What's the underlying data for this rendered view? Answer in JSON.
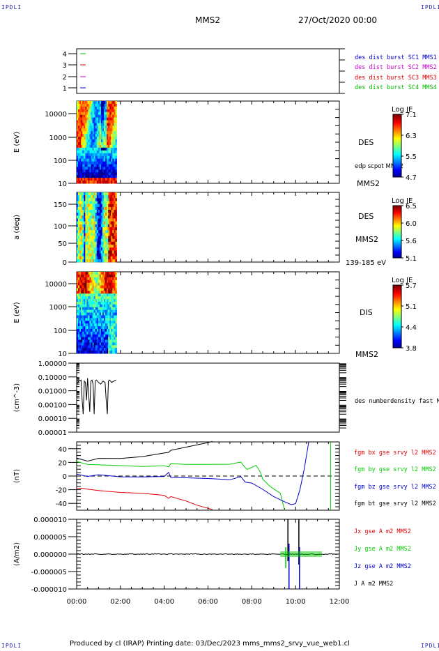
{
  "header": {
    "corner_label": "IPDLI",
    "spacecraft": "MMS2",
    "date": "27/Oct/2020 00:00"
  },
  "footer": {
    "text": "Produced by cl (IRAP)   Printing date: 03/Dec/2023   mms_mms2_srvy_vue_web1.cl"
  },
  "colors": {
    "mms1": "#0000cc",
    "mms2": "#cc00cc",
    "mms3": "#dd0000",
    "mms4": "#00bb00",
    "bx": "#dd0000",
    "by": "#00cc00",
    "bz": "#0000cc",
    "bt": "#000000"
  },
  "chart_data": [
    {
      "type": "line",
      "panel": "burst-availability",
      "yticks": [
        "4",
        "3",
        "2",
        "1"
      ],
      "series": [
        {
          "name": "des dist burst SC1 MMS1",
          "y": 1,
          "color": "#0000cc"
        },
        {
          "name": "des dist burst SC2 MMS2",
          "y": 2,
          "color": "#cc00cc"
        },
        {
          "name": "des dist burst SC3 MMS3",
          "y": 3,
          "color": "#dd0000"
        },
        {
          "name": "des dist burst SC4 MMS4",
          "y": 4,
          "color": "#00bb00"
        }
      ]
    },
    {
      "type": "heatmap",
      "panel": "des-energy",
      "ylabel": "E (eV)",
      "yticks": [
        "10000",
        "1000",
        "100",
        "10"
      ],
      "yscale": "log",
      "ylim": [
        10,
        30000
      ],
      "x_data_range": [
        "00:00",
        "01:50"
      ],
      "right_labels": [
        "DES",
        "edp scpot MMS2",
        "MMS2"
      ],
      "colorbar": {
        "title": "Log JE",
        "ticks": [
          "7.1",
          "6.3",
          "5.5",
          "4.7"
        ]
      }
    },
    {
      "type": "heatmap",
      "panel": "des-pitch-angle",
      "ylabel": "a (deg)",
      "yticks": [
        "150",
        "100",
        "50",
        "0"
      ],
      "ylim": [
        0,
        180
      ],
      "x_data_range": [
        "00:00",
        "01:50"
      ],
      "right_labels": [
        "DES",
        "MMS2",
        "139-185 eV"
      ],
      "colorbar": {
        "title": "Log JE",
        "ticks": [
          "6.5",
          "6.0",
          "5.6",
          "5.1"
        ]
      }
    },
    {
      "type": "heatmap",
      "panel": "dis-energy",
      "ylabel": "E (eV)",
      "yticks": [
        "10000",
        "1000",
        "100",
        "10"
      ],
      "yscale": "log",
      "ylim": [
        10,
        30000
      ],
      "x_data_range": [
        "00:00",
        "01:50"
      ],
      "right_labels": [
        "DIS",
        "MMS2"
      ],
      "colorbar": {
        "title": "Log JE",
        "ticks": [
          "5.7",
          "5.1",
          "4.4",
          "3.8"
        ]
      }
    },
    {
      "type": "line",
      "panel": "density",
      "ylabel": "(cm^-3)",
      "yticks": [
        "1.00000",
        "0.10000",
        "0.01000",
        "0.00100",
        "0.00010",
        "0.00001"
      ],
      "yscale": "log",
      "ylim": [
        1e-05,
        1
      ],
      "series": [
        {
          "name": "des numberdensity fast M",
          "color": "#000000",
          "x": [
            0.0,
            0.1,
            0.2,
            0.25,
            0.3,
            0.35,
            0.4,
            0.45,
            0.5,
            0.55,
            0.6,
            0.65,
            0.7,
            0.75,
            0.8,
            0.85,
            0.9,
            0.95,
            1.0,
            1.1,
            1.2,
            1.3,
            1.35,
            1.4,
            1.45,
            1.5,
            1.55,
            1.6,
            1.7,
            1.8
          ],
          "y": [
            0.03,
            0.05,
            0.06,
            0.002,
            0.0002,
            0.05,
            0.04,
            0.002,
            0.08,
            0.005,
            0.0003,
            0.05,
            0.06,
            0.03,
            0.0002,
            0.05,
            0.06,
            0.05,
            0.04,
            0.03,
            0.05,
            0.04,
            0.002,
            0.0002,
            0.05,
            0.06,
            0.05,
            0.04,
            0.05,
            0.06
          ]
        }
      ]
    },
    {
      "type": "line",
      "panel": "magnetic-field",
      "ylabel": "(nT)",
      "yticks": [
        "40",
        "20",
        "0",
        "-20",
        "-40"
      ],
      "ylim": [
        -50,
        50
      ],
      "series": [
        {
          "name": "fgm bx gse srvy l2 MMS2",
          "color": "#dd0000",
          "x": [
            0.0,
            0.2,
            0.5,
            1.0,
            2.0,
            3.0,
            4.0,
            4.2,
            4.3,
            5.0,
            5.5,
            6.0,
            6.2
          ],
          "y": [
            -18,
            -17,
            -20,
            -22,
            -24,
            -26,
            -29,
            -33,
            -30,
            -37,
            -42,
            -47,
            -50
          ]
        },
        {
          "name": "fgm by gse srvy l2 MMS2",
          "color": "#00cc00",
          "x": [
            0.0,
            0.5,
            1.0,
            2.0,
            3.0,
            4.0,
            4.2,
            4.3,
            5.0,
            6.0,
            7.0,
            7.5,
            7.7,
            7.8,
            8.2,
            8.4,
            8.5,
            8.8,
            9.0,
            9.3,
            9.5
          ],
          "y": [
            21,
            18,
            17,
            15,
            15,
            16,
            13,
            19,
            18,
            17,
            17,
            20,
            12,
            10,
            15,
            5,
            -5,
            -15,
            -20,
            -25,
            -50
          ]
        },
        {
          "name": "fgm bz gse srvy l2 MMS2",
          "color": "#0000cc",
          "x": [
            0.0,
            0.5,
            1.0,
            2.0,
            3.0,
            4.0,
            4.2,
            4.3,
            5.0,
            6.0,
            7.0,
            7.5,
            7.7,
            8.0,
            8.5,
            9.0,
            9.5,
            9.8,
            10.0,
            10.2,
            10.4,
            10.6
          ],
          "y": [
            3,
            0,
            1,
            -1,
            -1,
            0,
            5,
            -2,
            -3,
            -4,
            -5,
            0,
            -8,
            -10,
            -20,
            -30,
            -37,
            -42,
            -40,
            -20,
            10,
            50
          ]
        },
        {
          "name": "fgm bt gse srvy l2 MMS2",
          "color": "#000000",
          "x": [
            0.0,
            0.5,
            1.0,
            2.0,
            3.0,
            4.0,
            4.2,
            4.3,
            5.0,
            6.0,
            6.2
          ],
          "y": [
            26,
            22,
            25,
            26,
            28,
            33,
            35,
            38,
            42,
            48,
            50
          ]
        },
        {
          "name": "spike",
          "color": "#00cc00",
          "x": [
            11.6,
            11.6,
            11.6
          ],
          "y": [
            -50,
            50,
            -50
          ]
        }
      ]
    },
    {
      "type": "line",
      "panel": "current-density",
      "ylabel": "(A/m2)",
      "yticks": [
        "0.000010",
        "0.000005",
        "0.000000",
        "-0.000005",
        "-0.000010"
      ],
      "ylim": [
        -1e-05,
        1e-05
      ],
      "xlim": [
        0,
        12
      ],
      "xticks": [
        "00:00",
        "02:00",
        "04:00",
        "06:00",
        "08:00",
        "10:00",
        "12:00"
      ],
      "series": [
        {
          "name": "Jx gse A m2 MMS2",
          "color": "#dd0000"
        },
        {
          "name": "Jy gse A m2 MMS2",
          "color": "#00cc00"
        },
        {
          "name": "Jz gse A m2 MMS2",
          "color": "#0000cc"
        },
        {
          "name": "J A m2 MMS2",
          "color": "#000000"
        }
      ]
    }
  ]
}
